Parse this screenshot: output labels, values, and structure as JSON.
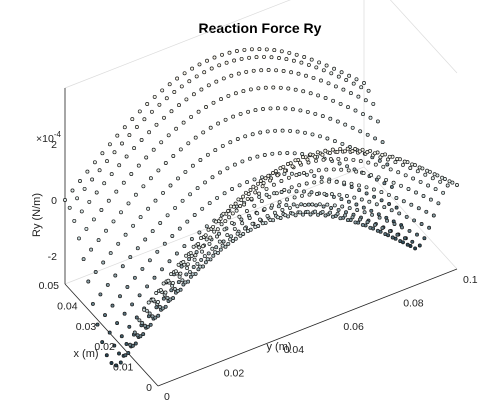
{
  "chart_data": {
    "type": "surface-scatter-3d",
    "title": "Reaction Force Ry",
    "xlabel": "x (m)",
    "ylabel": "y (m)",
    "zlabel": "Ry (N/m)",
    "z_exponent_label": "×10",
    "z_exponent_power": "-4",
    "xlim": [
      0,
      0.05
    ],
    "ylim": [
      0,
      0.1
    ],
    "zlim": [
      -0.0003,
      0.0004
    ],
    "x_ticks": [
      "0",
      "0.01",
      "0.02",
      "0.03",
      "0.04",
      "0.05"
    ],
    "y_ticks": [
      "0",
      "0.02",
      "0.04",
      "0.06",
      "0.08",
      "0.1"
    ],
    "z_ticks": [
      "-2",
      "0",
      "2"
    ],
    "x_tick_values": [
      0,
      0.01,
      0.02,
      0.03,
      0.04,
      0.05
    ],
    "y_tick_values": [
      0,
      0.02,
      0.04,
      0.06,
      0.08,
      0.1
    ],
    "z_tick_values": [
      -0.0002,
      0,
      0.0002
    ],
    "grid_nx": 21,
    "grid_ny": 41,
    "surface": {
      "description_shape": "Ry = A*sin(pi*y/L) - B*sin^2(pi*x/W)",
      "A": 0.0003,
      "B": 0.0004,
      "x_max": 0.05,
      "y_max": 0.1
    },
    "colors": {
      "low": "#1f3d4c",
      "mid": "#d9e9e9",
      "high": "#fbf6e8",
      "marker_edge": "#1a1a1a"
    }
  }
}
